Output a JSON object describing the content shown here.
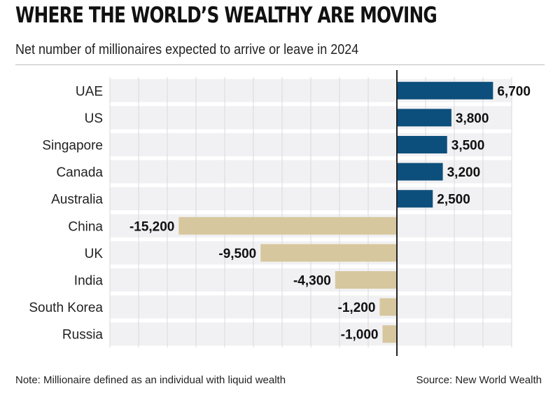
{
  "header": {
    "title": "WHERE THE WORLD’S WEALTHY ARE MOVING",
    "subtitle": "Net number of millionaires expected to arrive or leave in 2024"
  },
  "footer": {
    "note": "Note: Millionaire defined as an individual with liquid wealth",
    "source": "Source: New World Wealth"
  },
  "colors": {
    "positive": "#0d4f7c",
    "negative": "#d7c79e",
    "row_band": "#f1f1f3",
    "gridline": "#d9d9dc",
    "zero_line": "#222222"
  },
  "chart_data": {
    "type": "bar",
    "orientation": "horizontal",
    "title": "WHERE THE WORLD’S WEALTHY ARE MOVING",
    "subtitle": "Net number of millionaires expected to arrive or leave in 2024",
    "categories": [
      "UAE",
      "US",
      "Singapore",
      "Canada",
      "Australia",
      "China",
      "UK",
      "India",
      "South Korea",
      "Russia"
    ],
    "values": [
      6700,
      3800,
      3500,
      3200,
      2500,
      -15200,
      -9500,
      -4300,
      -1200,
      -1000
    ],
    "value_labels": [
      "6,700",
      "3,800",
      "3,500",
      "3,200",
      "2,500",
      "-15,200",
      "-9,500",
      "-4,300",
      "-1,200",
      "-1,000"
    ],
    "xlim": [
      -20000,
      8000
    ],
    "grid": true,
    "legend": "none"
  }
}
